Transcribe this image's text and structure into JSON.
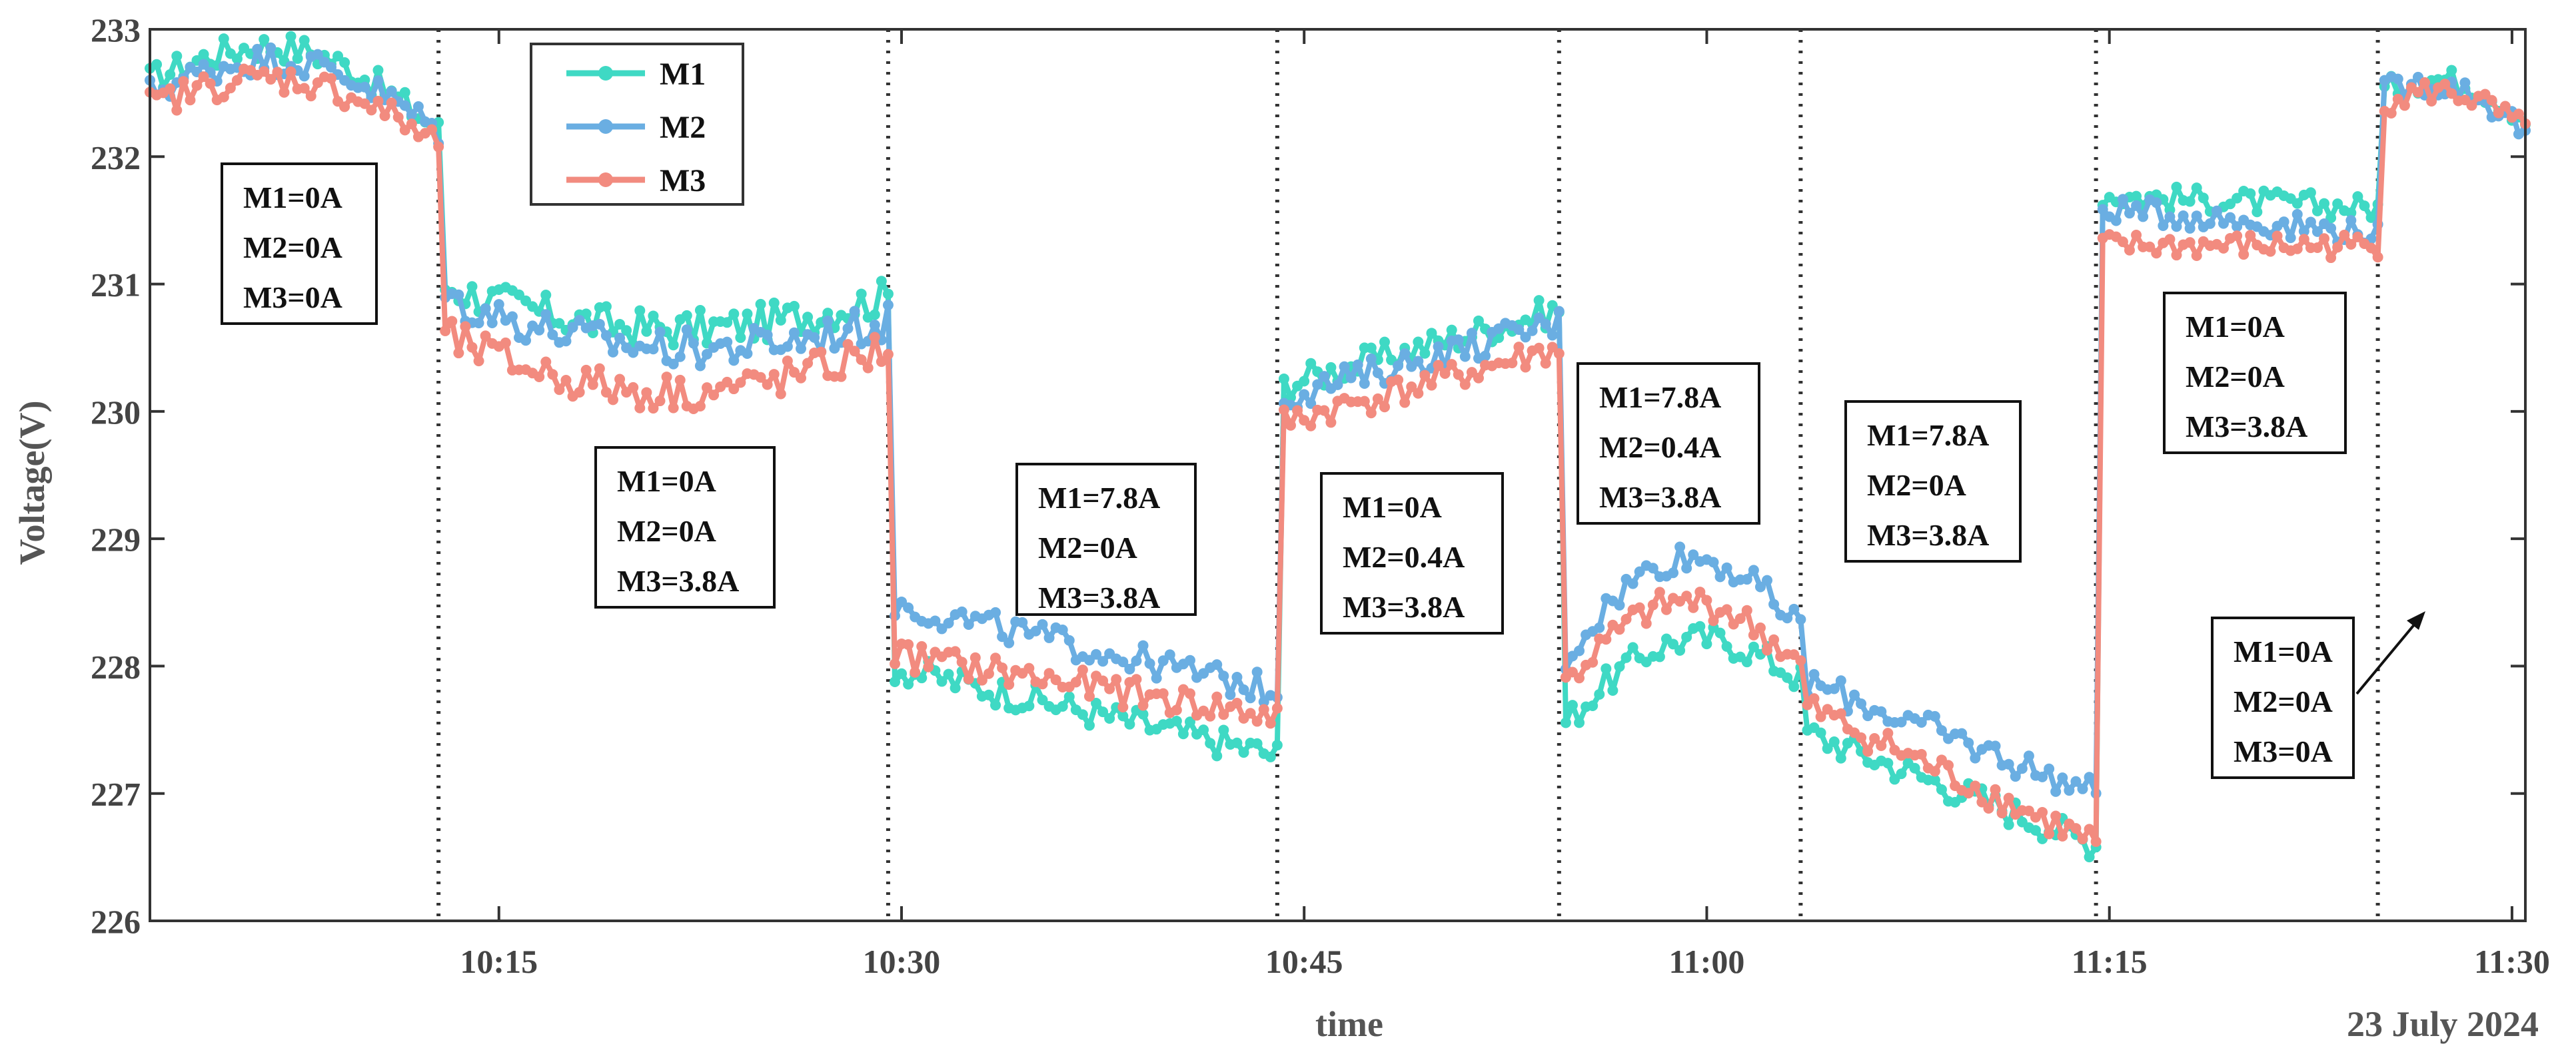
{
  "chart_data": {
    "type": "line",
    "xlabel": "time",
    "ylabel": "Voltage(V)",
    "date_label": "23 July 2024",
    "ylim": [
      226,
      233
    ],
    "xlim": [
      10.0333,
      11.5083
    ],
    "y_ticks": [
      226,
      227,
      228,
      229,
      230,
      231,
      232,
      233
    ],
    "x_ticks": [
      {
        "t": 10.25,
        "label": "10:15"
      },
      {
        "t": 10.5,
        "label": "10:30"
      },
      {
        "t": 10.75,
        "label": "10:45"
      },
      {
        "t": 11.0,
        "label": "11:00"
      },
      {
        "t": 11.25,
        "label": "11:15"
      },
      {
        "t": 11.5,
        "label": "11:30"
      }
    ],
    "boundaries": [
      10.2125,
      10.4917,
      10.7333,
      10.9083,
      11.0583,
      11.2417,
      11.4167
    ],
    "colors": {
      "M1": "#3fd9c4",
      "M2": "#6aaee2",
      "M3": "#f28b7f"
    },
    "legend": [
      "M1",
      "M2",
      "M3"
    ],
    "series": [
      {
        "name": "M1",
        "segments": [
          {
            "t0": 10.0333,
            "t1": 10.2125,
            "start": 232.6,
            "end": 232.2,
            "shape": "bump",
            "amp": 0.45,
            "noise": 0.12
          },
          {
            "t0": 10.2125,
            "t1": 10.4917,
            "start": 231.0,
            "end": 230.9,
            "shape": "dip",
            "amp": 0.3,
            "noise": 0.15
          },
          {
            "t0": 10.4917,
            "t1": 10.7333,
            "start": 228.0,
            "end": 227.3,
            "shape": "flat",
            "amp": 0,
            "noise": 0.12
          },
          {
            "t0": 10.7333,
            "t1": 10.9083,
            "start": 230.2,
            "end": 230.8,
            "shape": "flat",
            "amp": 0,
            "noise": 0.12
          },
          {
            "t0": 10.9083,
            "t1": 11.0583,
            "start": 227.5,
            "end": 227.9,
            "shape": "bump",
            "amp": 0.5,
            "noise": 0.12
          },
          {
            "t0": 11.0583,
            "t1": 11.2417,
            "start": 227.5,
            "end": 226.6,
            "shape": "flat",
            "amp": 0,
            "noise": 0.12
          },
          {
            "t0": 11.2417,
            "t1": 11.4167,
            "start": 231.7,
            "end": 231.6,
            "shape": "flat",
            "amp": 0,
            "noise": 0.1
          },
          {
            "t0": 11.4167,
            "t1": 11.5083,
            "start": 232.5,
            "end": 232.3,
            "shape": "bump",
            "amp": 0.2,
            "noise": 0.1
          }
        ]
      },
      {
        "name": "M2",
        "segments": [
          {
            "t0": 10.0333,
            "t1": 10.2125,
            "start": 232.5,
            "end": 232.2,
            "shape": "bump",
            "amp": 0.4,
            "noise": 0.12
          },
          {
            "t0": 10.2125,
            "t1": 10.4917,
            "start": 230.9,
            "end": 230.7,
            "shape": "dip",
            "amp": 0.3,
            "noise": 0.15
          },
          {
            "t0": 10.4917,
            "t1": 10.7333,
            "start": 228.5,
            "end": 227.8,
            "shape": "flat",
            "amp": 0,
            "noise": 0.12
          },
          {
            "t0": 10.7333,
            "t1": 10.9083,
            "start": 230.1,
            "end": 230.7,
            "shape": "flat",
            "amp": 0,
            "noise": 0.12
          },
          {
            "t0": 10.9083,
            "t1": 11.0583,
            "start": 228.0,
            "end": 228.3,
            "shape": "bump",
            "amp": 0.7,
            "noise": 0.12
          },
          {
            "t0": 11.0583,
            "t1": 11.2417,
            "start": 227.9,
            "end": 227.0,
            "shape": "flat",
            "amp": 0,
            "noise": 0.12
          },
          {
            "t0": 11.2417,
            "t1": 11.4167,
            "start": 231.6,
            "end": 231.4,
            "shape": "flat",
            "amp": 0,
            "noise": 0.1
          },
          {
            "t0": 11.4167,
            "t1": 11.5083,
            "start": 232.5,
            "end": 232.2,
            "shape": "bump",
            "amp": 0.2,
            "noise": 0.1
          }
        ]
      },
      {
        "name": "M3",
        "segments": [
          {
            "t0": 10.0333,
            "t1": 10.2125,
            "start": 232.4,
            "end": 232.1,
            "shape": "bump",
            "amp": 0.35,
            "noise": 0.12
          },
          {
            "t0": 10.2125,
            "t1": 10.4917,
            "start": 230.6,
            "end": 230.5,
            "shape": "dip",
            "amp": 0.4,
            "noise": 0.15
          },
          {
            "t0": 10.4917,
            "t1": 10.7333,
            "start": 228.1,
            "end": 227.6,
            "shape": "flat",
            "amp": 0,
            "noise": 0.12
          },
          {
            "t0": 10.7333,
            "t1": 10.9083,
            "start": 229.9,
            "end": 230.5,
            "shape": "flat",
            "amp": 0,
            "noise": 0.12
          },
          {
            "t0": 10.9083,
            "t1": 11.0583,
            "start": 227.8,
            "end": 228.0,
            "shape": "bump",
            "amp": 0.6,
            "noise": 0.12
          },
          {
            "t0": 11.0583,
            "t1": 11.2417,
            "start": 227.7,
            "end": 226.6,
            "shape": "flat",
            "amp": 0,
            "noise": 0.12
          },
          {
            "t0": 11.2417,
            "t1": 11.4167,
            "start": 231.3,
            "end": 231.3,
            "shape": "flat",
            "amp": 0,
            "noise": 0.1
          },
          {
            "t0": 11.4167,
            "t1": 11.5083,
            "start": 232.4,
            "end": 232.2,
            "shape": "bump",
            "amp": 0.2,
            "noise": 0.1
          }
        ]
      }
    ],
    "annotations": [
      {
        "lines": [
          "M1=0A",
          "M2=0A",
          "M3=0A"
        ]
      },
      {
        "lines": [
          "M1=0A",
          "M2=0A",
          "M3=3.8A"
        ]
      },
      {
        "lines": [
          "M1=7.8A",
          "M2=0A",
          "M3=3.8A"
        ]
      },
      {
        "lines": [
          "M1=0A",
          "M2=0.4A",
          "M3=3.8A"
        ]
      },
      {
        "lines": [
          "M1=7.8A",
          "M2=0.4A",
          "M3=3.8A"
        ]
      },
      {
        "lines": [
          "M1=7.8A",
          "M2=0A",
          "M3=3.8A"
        ]
      },
      {
        "lines": [
          "M1=0A",
          "M2=0A",
          "M3=3.8A"
        ]
      },
      {
        "lines": [
          "M1=0A",
          "M2=0A",
          "M3=0A"
        ]
      }
    ]
  }
}
